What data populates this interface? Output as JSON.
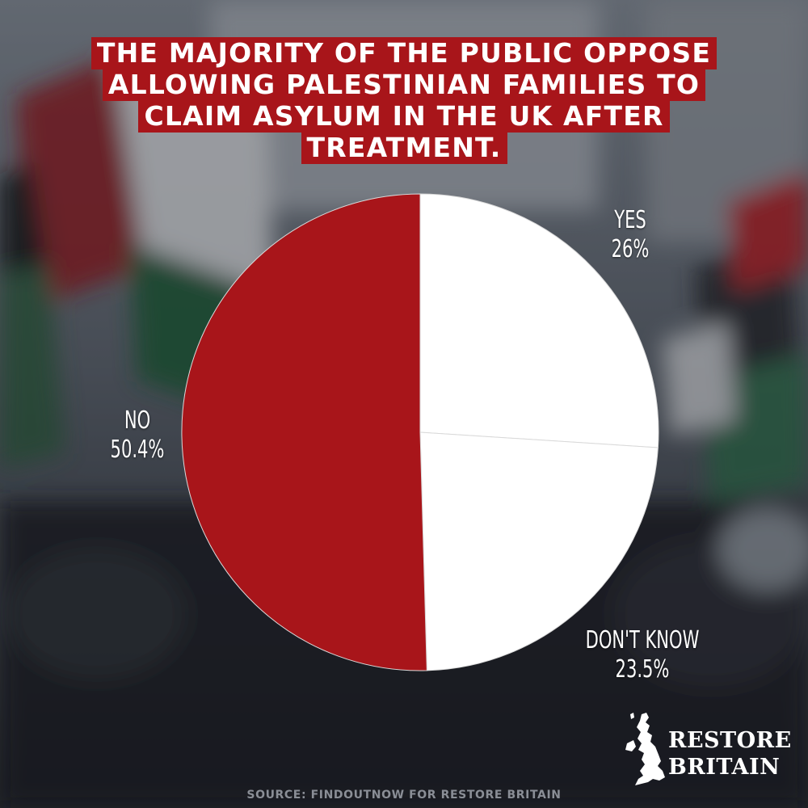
{
  "title_lines": [
    "THE MAJORITY OF THE PUBLIC OPPOSE",
    "ALLOWING PALESTINIAN FAMILIES TO",
    "CLAIM ASYLUM IN THE UK AFTER",
    "TREATMENT."
  ],
  "chart_data": {
    "type": "pie",
    "title": "THE MAJORITY OF THE PUBLIC OPPOSE ALLOWING PALESTINIAN FAMILIES TO CLAIM ASYLUM IN THE UK AFTER TREATMENT.",
    "slices": [
      {
        "label": "YES",
        "value": 26,
        "display": "26%",
        "color": "#ffffff"
      },
      {
        "label": "DON'T KNOW",
        "value": 23.5,
        "display": "23.5%",
        "color": "#ffffff"
      },
      {
        "label": "NO",
        "value": 50.4,
        "display": "50.4%",
        "color": "#a8151a"
      }
    ],
    "start_angle": "12 o'clock, clockwise",
    "legend": "none",
    "grid": false
  },
  "logo": {
    "line1": "RESTORE",
    "line2": "BRITAIN",
    "icon": "uk-map-icon"
  },
  "source": "SOURCE: FINDOUTNOW FOR RESTORE BRITAIN",
  "colors": {
    "accent": "#a8151a",
    "text": "#ffffff"
  }
}
